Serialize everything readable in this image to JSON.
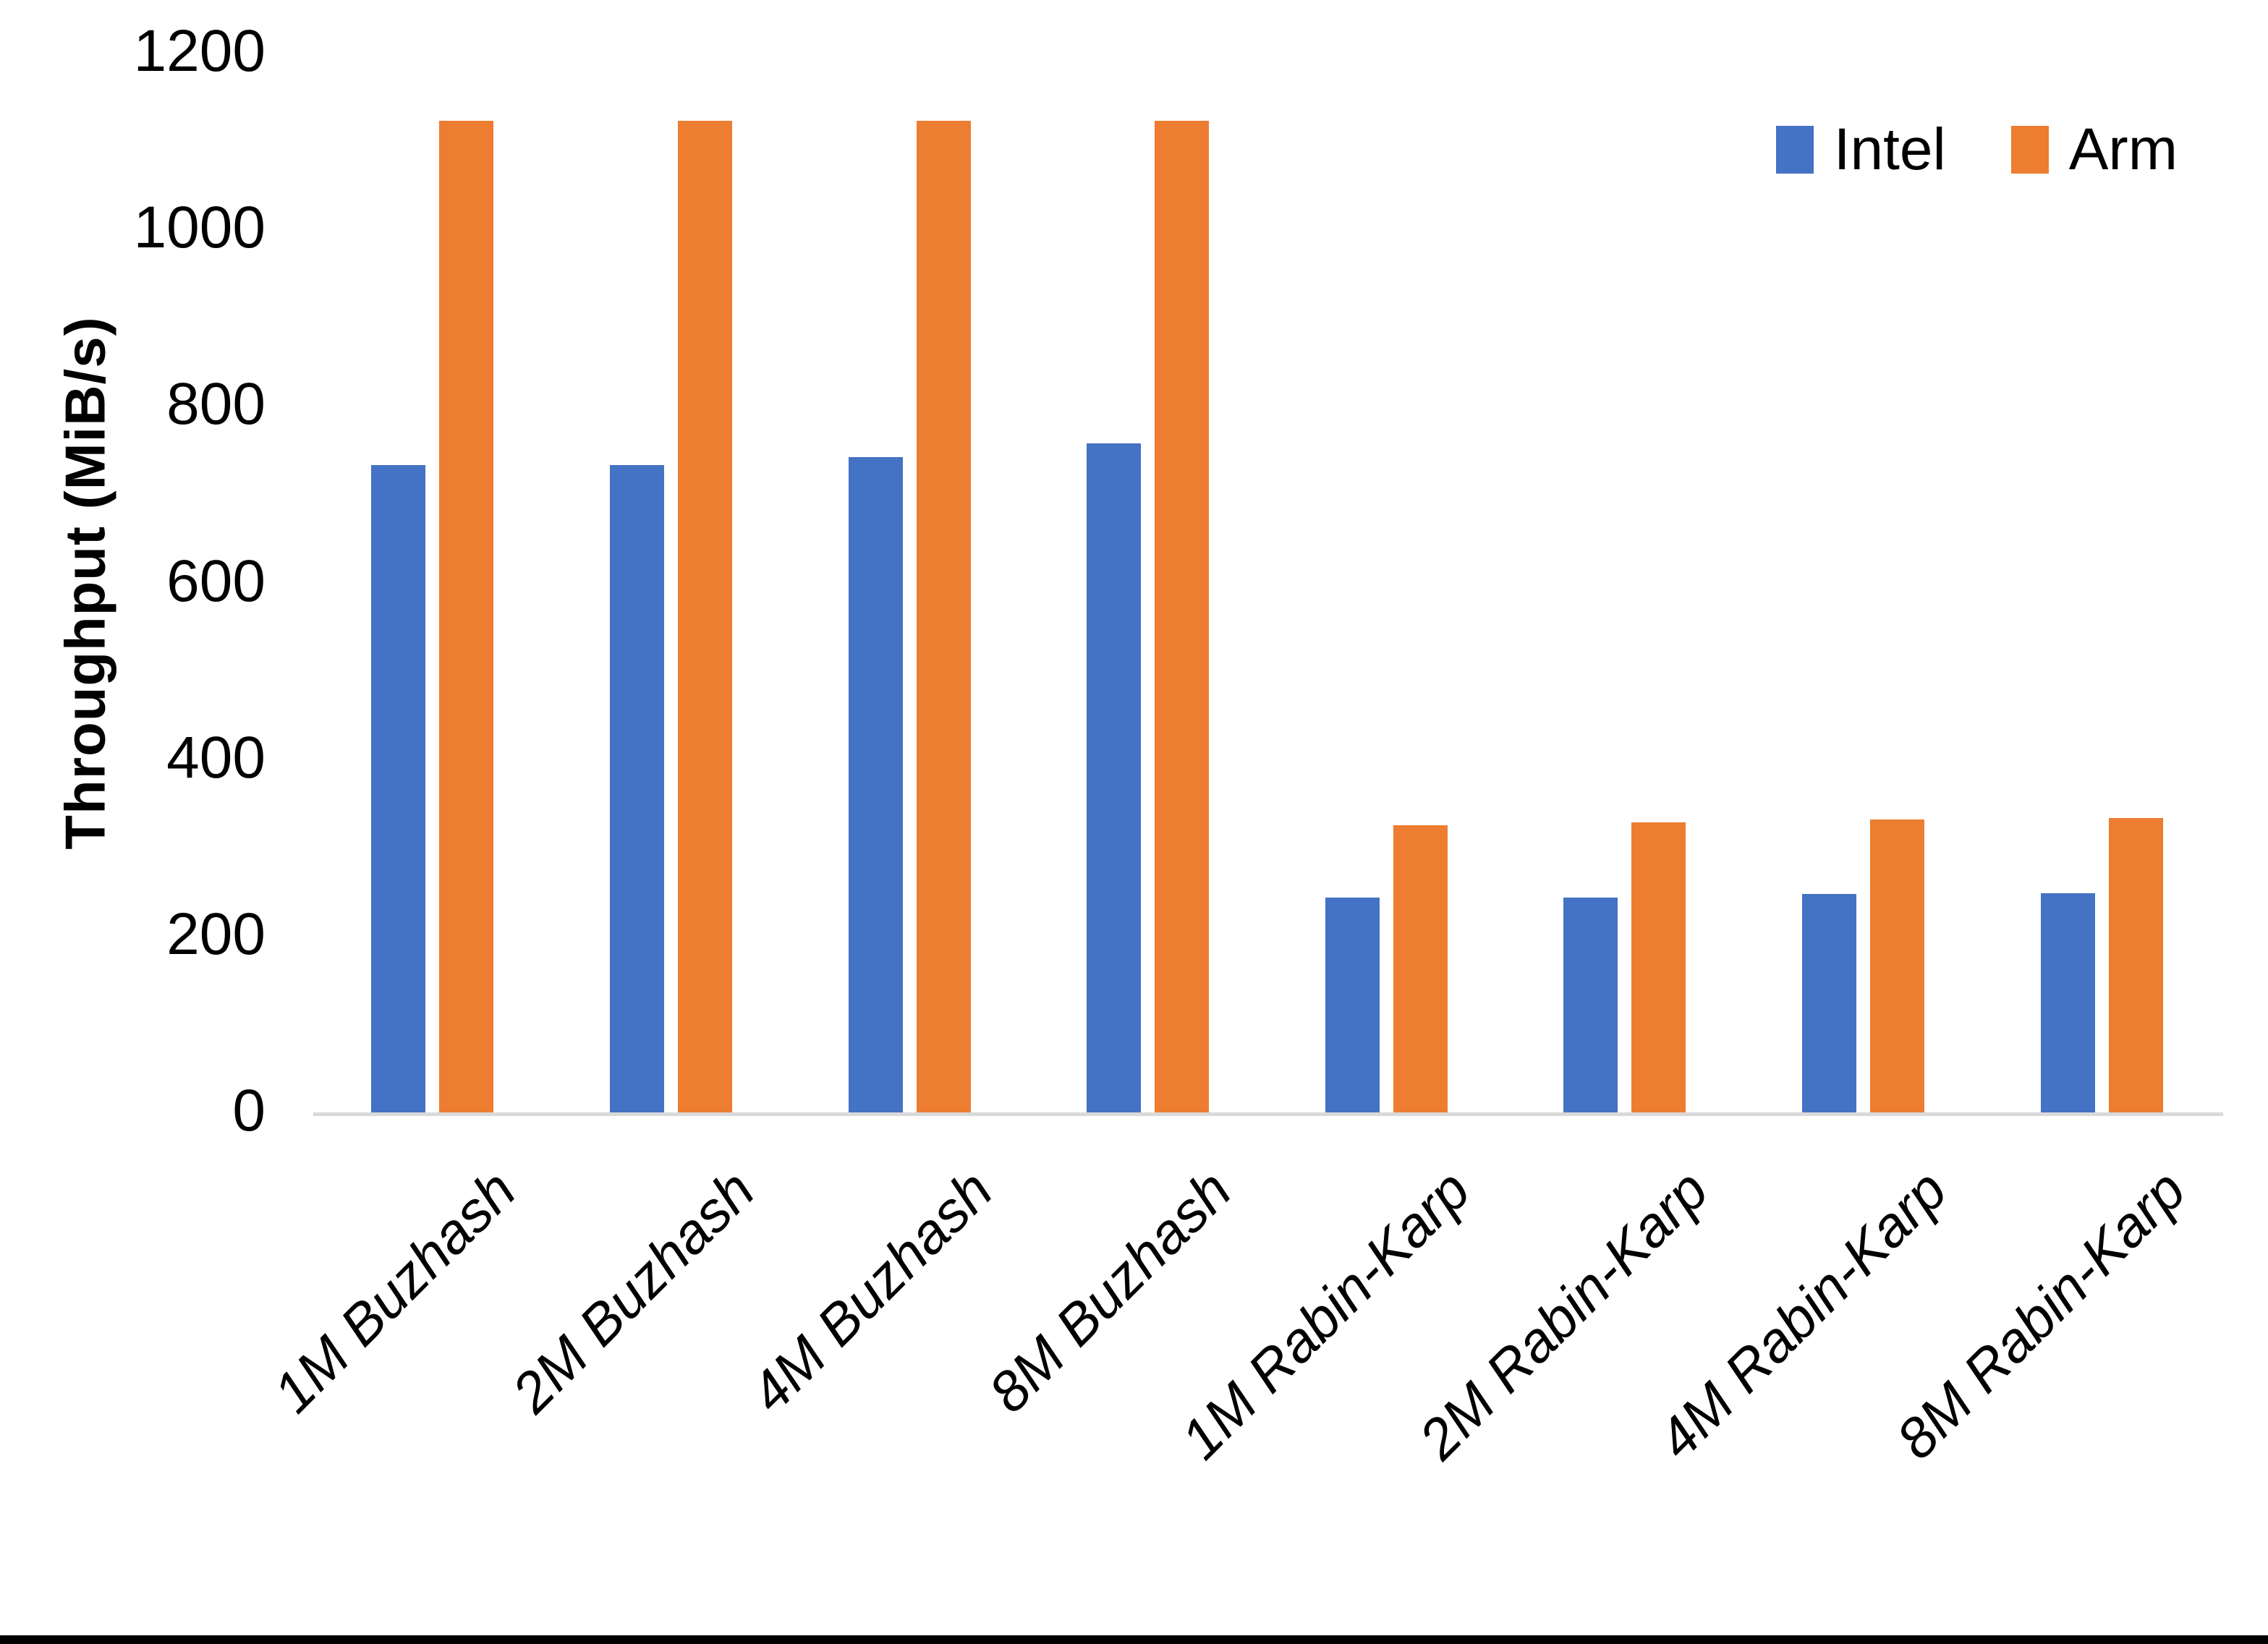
{
  "chart_data": {
    "type": "bar",
    "title": "",
    "xlabel": "",
    "ylabel": "Throughput (MiB/s)",
    "ylim": [
      0,
      1200
    ],
    "yticks": [
      0,
      200,
      400,
      600,
      800,
      1000,
      1200
    ],
    "grid": false,
    "legend_position": "top-right",
    "categories": [
      "1M Buzhash",
      "2M Buzhash",
      "4M Buzhash",
      "8M Buzhash",
      "1M Rabin-Karp",
      "2M Rabin-Karp",
      "4M Rabin-Karp",
      "8M Rabin-Karp"
    ],
    "series": [
      {
        "name": "Intel",
        "color": "#4472C4",
        "values": [
          735,
          735,
          744,
          759,
          245,
          245,
          249,
          250
        ]
      },
      {
        "name": "Arm",
        "color": "#ED7D31",
        "values": [
          1125,
          1125,
          1125,
          1125,
          327,
          330,
          333,
          335
        ]
      }
    ],
    "colors": {
      "intel": "#4472C4",
      "arm": "#ED7D31",
      "axis_line": "#D9D9D9",
      "text": "#000000"
    }
  }
}
